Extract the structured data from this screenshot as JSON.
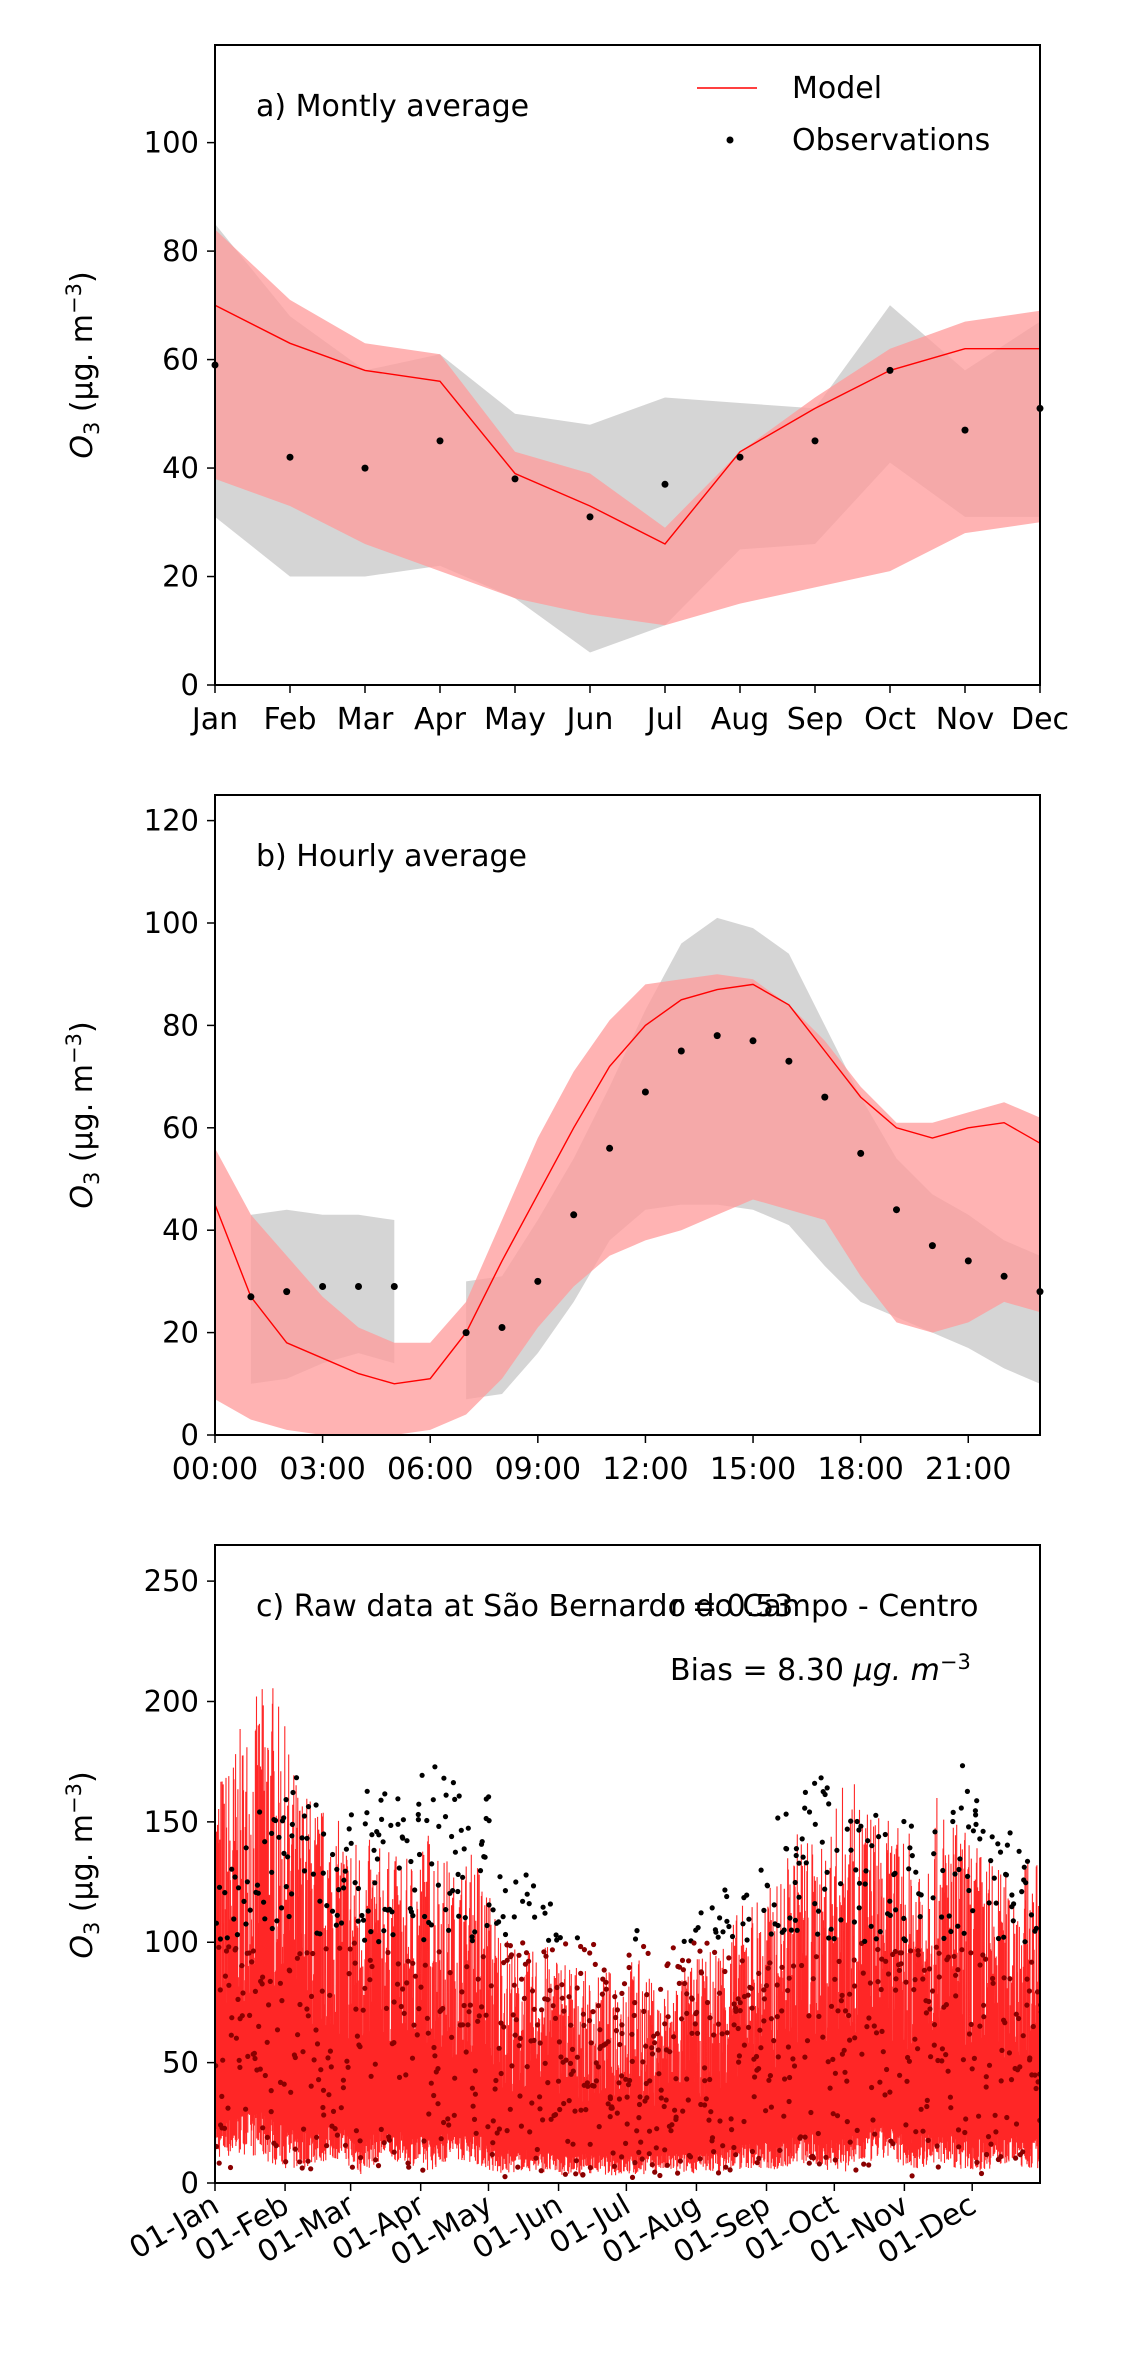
{
  "chart_data": [
    {
      "type": "line",
      "title": "a) Montly average",
      "ylabel_base": "O",
      "ylabel_sub": "3",
      "ylabel_unit": " (μg. m",
      "ylabel_exp": "−3",
      "ylabel_close": ")",
      "ylim": [
        0,
        118
      ],
      "yticks": [
        0,
        20,
        40,
        60,
        80,
        100
      ],
      "xlim": [
        0,
        11
      ],
      "categories": [
        "Jan",
        "Feb",
        "Mar",
        "Apr",
        "May",
        "Jun",
        "Jul",
        "Aug",
        "Sep",
        "Oct",
        "Nov",
        "Dec"
      ],
      "legend": {
        "placement": "top-right",
        "model": "Model",
        "observations": "Observations"
      },
      "colors": {
        "model": "#ff0000",
        "model_band": "#ff9a9a",
        "obs_band": "#bfbfbf",
        "obs": "#000000"
      },
      "series": [
        {
          "name": "Model",
          "kind": "line",
          "x": [
            0,
            1,
            2,
            3,
            4,
            5,
            6,
            7,
            8,
            9,
            10,
            11
          ],
          "values": [
            70,
            63,
            58,
            56,
            39,
            33,
            26,
            43,
            51,
            58,
            62,
            62
          ]
        },
        {
          "name": "Observations",
          "kind": "points",
          "x": [
            0,
            1,
            2,
            3,
            4,
            5,
            6,
            7,
            8,
            9,
            10,
            11
          ],
          "values": [
            59,
            42,
            40,
            45,
            38,
            31,
            37,
            42,
            45,
            58,
            47,
            51
          ]
        }
      ],
      "bands": [
        {
          "kind": "obs",
          "x": [
            0,
            1,
            2,
            3,
            4,
            5,
            6,
            7,
            8,
            9,
            10,
            11
          ],
          "upper": [
            85,
            68,
            58,
            61,
            50,
            48,
            53,
            52,
            51,
            70,
            58,
            67
          ],
          "lower": [
            31,
            20,
            20,
            22,
            16,
            6,
            11,
            25,
            26,
            41,
            31,
            31
          ]
        },
        {
          "kind": "model",
          "x": [
            0,
            1,
            2,
            3,
            4,
            5,
            6,
            7,
            8,
            9,
            10,
            11
          ],
          "upper": [
            84,
            71,
            63,
            61,
            43,
            39,
            29,
            43,
            53,
            62,
            67,
            69
          ],
          "lower": [
            38,
            33,
            26,
            21,
            16,
            13,
            11,
            15,
            18,
            21,
            28,
            30
          ]
        }
      ]
    },
    {
      "type": "line",
      "title": "b) Hourly average",
      "ylabel_base": "O",
      "ylabel_sub": "3",
      "ylabel_unit": " (μg. m",
      "ylabel_exp": "−3",
      "ylabel_close": ")",
      "ylim": [
        0,
        125
      ],
      "yticks": [
        0,
        20,
        40,
        60,
        80,
        100,
        120
      ],
      "xlim": [
        0,
        23
      ],
      "xticks": [
        0,
        3,
        6,
        9,
        12,
        15,
        18,
        21
      ],
      "xtick_labels": [
        "00:00",
        "03:00",
        "06:00",
        "09:00",
        "12:00",
        "15:00",
        "18:00",
        "21:00"
      ],
      "colors": {
        "model": "#ff0000",
        "model_band": "#ff9a9a",
        "obs_band": "#bfbfbf",
        "obs": "#000000"
      },
      "series": [
        {
          "name": "Model",
          "kind": "line",
          "x": [
            0,
            1,
            2,
            3,
            4,
            5,
            6,
            7,
            8,
            9,
            10,
            11,
            12,
            13,
            14,
            15,
            16,
            17,
            18,
            19,
            20,
            21,
            22,
            23
          ],
          "values": [
            45,
            27,
            18,
            15,
            12,
            10,
            11,
            20,
            34,
            47,
            60,
            72,
            80,
            85,
            87,
            88,
            84,
            75,
            66,
            60,
            58,
            60,
            61,
            57
          ]
        },
        {
          "name": "Observations",
          "kind": "points",
          "x": [
            1,
            2,
            3,
            4,
            5,
            7,
            8,
            9,
            10,
            11,
            12,
            13,
            14,
            15,
            16,
            17,
            18,
            19,
            20,
            21,
            22,
            23
          ],
          "values": [
            27,
            28,
            29,
            29,
            29,
            20,
            21,
            30,
            43,
            56,
            67,
            75,
            78,
            77,
            73,
            66,
            55,
            44,
            37,
            34,
            31,
            28
          ]
        }
      ],
      "bands": [
        {
          "kind": "obs",
          "x": [
            1,
            2,
            3,
            4,
            5
          ],
          "upper": [
            43,
            44,
            43,
            43,
            42
          ],
          "lower": [
            10,
            11,
            14,
            16,
            14
          ]
        },
        {
          "kind": "obs",
          "x": [
            7,
            8,
            9,
            10,
            11,
            12,
            13,
            14,
            15,
            16,
            17,
            18,
            19,
            20,
            21,
            22,
            23
          ],
          "upper": [
            30,
            31,
            42,
            54,
            68,
            83,
            96,
            101,
            99,
            94,
            80,
            66,
            54,
            47,
            43,
            38,
            35
          ],
          "lower": [
            7,
            8,
            16,
            26,
            38,
            44,
            45,
            45,
            44,
            41,
            33,
            26,
            23,
            20,
            17,
            13,
            10
          ]
        },
        {
          "kind": "model",
          "x": [
            0,
            1,
            2,
            3,
            4,
            5,
            6,
            7,
            8,
            9,
            10,
            11,
            12,
            13,
            14,
            15,
            16,
            17,
            18,
            19,
            20,
            21,
            22,
            23
          ],
          "upper": [
            56,
            43,
            35,
            27,
            21,
            18,
            18,
            26,
            42,
            58,
            71,
            81,
            88,
            89,
            90,
            89,
            84,
            77,
            68,
            61,
            61,
            63,
            65,
            62
          ],
          "lower": [
            7,
            3,
            1,
            0,
            0,
            0,
            1,
            4,
            11,
            21,
            29,
            35,
            38,
            40,
            43,
            46,
            44,
            42,
            31,
            22,
            20,
            22,
            26,
            24
          ]
        }
      ]
    },
    {
      "type": "line",
      "title": "c) Raw data at São Bernardo do Campo - Centro",
      "stat_r": "r = 0.53",
      "stat_bias_prefix": "Bias = 8.30 ",
      "stat_bias_unit": "μg. m",
      "stat_bias_exp": "−3",
      "ylabel_base": "O",
      "ylabel_sub": "3",
      "ylabel_unit": " (μg. m",
      "ylabel_exp": "−3",
      "ylabel_close": ")",
      "ylim": [
        0,
        265
      ],
      "yticks": [
        0,
        50,
        100,
        150,
        200,
        250
      ],
      "xlim": [
        "2020-01-01",
        "2020-12-31"
      ],
      "xtick_dates": [
        "2020-01-01",
        "2020-02-01",
        "2020-03-01",
        "2020-04-01",
        "2020-05-01",
        "2020-06-01",
        "2020-07-01",
        "2020-08-01",
        "2020-09-01",
        "2020-10-01",
        "2020-11-01",
        "2020-12-01"
      ],
      "xtick_labels": [
        "01-Jan",
        "01-Feb",
        "01-Mar",
        "01-Apr",
        "01-May",
        "01-Jun",
        "01-Jul",
        "01-Aug",
        "01-Sep",
        "01-Oct",
        "01-Nov",
        "01-Dec"
      ],
      "colors": {
        "model": "#ff0000",
        "obs": "#000000"
      },
      "series": [
        {
          "name": "Model",
          "kind": "line",
          "x": [
            "2020-01-05",
            "2020-01-15",
            "2020-01-25",
            "2020-02-05",
            "2020-02-15",
            "2020-02-25",
            "2020-03-05",
            "2020-03-15",
            "2020-03-25",
            "2020-04-05",
            "2020-04-15",
            "2020-04-25",
            "2020-05-05",
            "2020-05-15",
            "2020-05-25",
            "2020-06-05",
            "2020-06-15",
            "2020-06-25",
            "2020-07-05",
            "2020-07-15",
            "2020-07-25",
            "2020-08-05",
            "2020-08-15",
            "2020-08-25",
            "2020-09-05",
            "2020-09-15",
            "2020-09-25",
            "2020-10-05",
            "2020-10-15",
            "2020-10-25",
            "2020-11-05",
            "2020-11-15",
            "2020-11-25",
            "2020-12-05",
            "2020-12-15",
            "2020-12-25"
          ],
          "daily_max": [
            175,
            195,
            215,
            170,
            160,
            150,
            145,
            140,
            135,
            150,
            130,
            140,
            110,
            95,
            100,
            95,
            85,
            90,
            95,
            80,
            90,
            95,
            110,
            120,
            125,
            150,
            140,
            170,
            160,
            150,
            145,
            160,
            150,
            140,
            130,
            135
          ],
          "daily_min": [
            10,
            12,
            8,
            5,
            8,
            10,
            3,
            10,
            8,
            5,
            10,
            8,
            3,
            5,
            4,
            3,
            4,
            3,
            3,
            5,
            4,
            4,
            5,
            6,
            5,
            8,
            6,
            4,
            8,
            10,
            5,
            8,
            6,
            5,
            8,
            6
          ]
        },
        {
          "name": "Observations",
          "kind": "points",
          "x": [
            "2020-01-05",
            "2020-01-15",
            "2020-01-25",
            "2020-02-05",
            "2020-02-15",
            "2020-02-25",
            "2020-03-05",
            "2020-03-15",
            "2020-03-25",
            "2020-04-05",
            "2020-04-15",
            "2020-04-25",
            "2020-05-05",
            "2020-05-15",
            "2020-05-25",
            "2020-06-05",
            "2020-06-15",
            "2020-06-25",
            "2020-07-05",
            "2020-07-15",
            "2020-07-25",
            "2020-08-05",
            "2020-08-15",
            "2020-08-25",
            "2020-09-05",
            "2020-09-15",
            "2020-09-25",
            "2020-10-05",
            "2020-10-15",
            "2020-10-25",
            "2020-11-05",
            "2020-11-15",
            "2020-11-25",
            "2020-12-05",
            "2020-12-15",
            "2020-12-25"
          ],
          "daily_max": [
            130,
            150,
            160,
            175,
            165,
            130,
            175,
            165,
            160,
            175,
            175,
            170,
            160,
            130,
            120,
            108,
            100,
            95,
            105,
            100,
            110,
            115,
            125,
            120,
            165,
            160,
            170,
            150,
            160,
            155,
            160,
            145,
            175,
            165,
            150,
            135
          ],
          "daily_min": [
            5,
            8,
            3,
            2,
            4,
            5,
            2,
            5,
            4,
            2,
            5,
            4,
            2,
            3,
            2,
            2,
            3,
            2,
            2,
            3,
            2,
            3,
            2,
            3,
            2,
            5,
            3,
            2,
            4,
            5,
            2,
            4,
            3,
            2,
            4,
            3
          ]
        }
      ]
    }
  ]
}
